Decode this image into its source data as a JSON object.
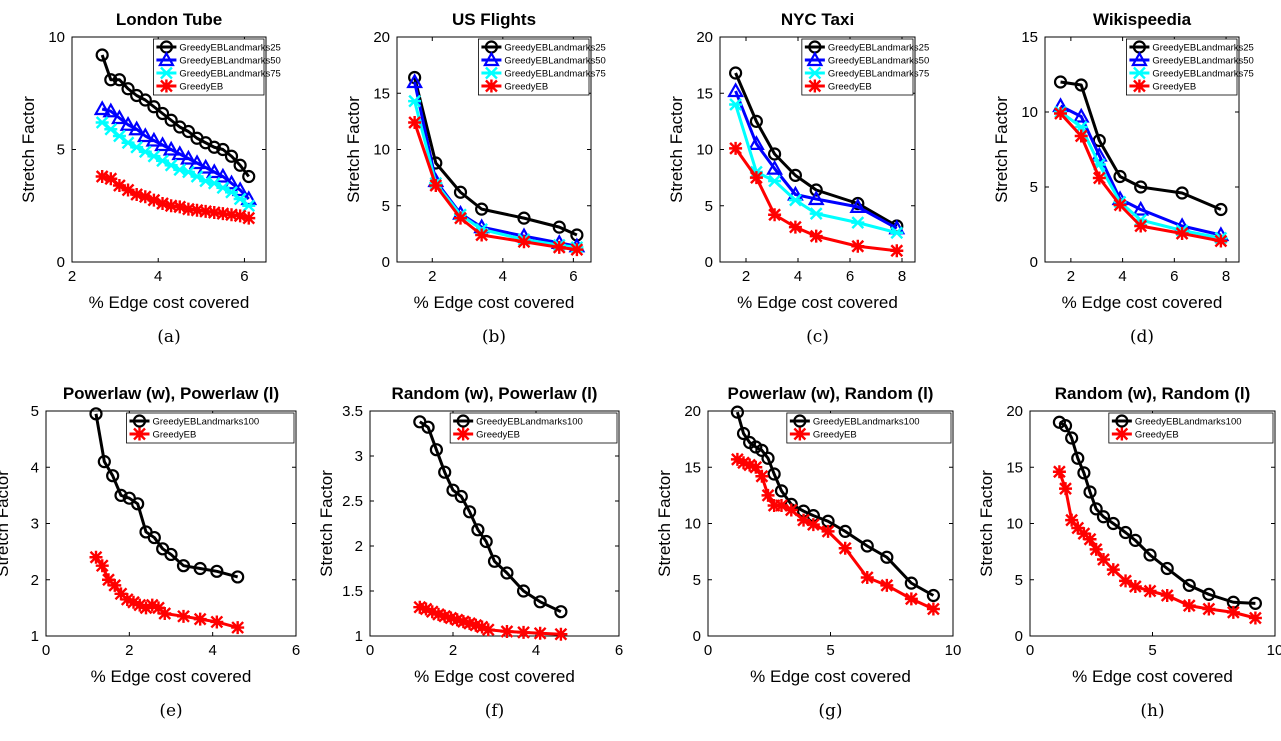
{
  "chart_data": [
    {
      "type": "line",
      "title": "London Tube",
      "caption": "(a)",
      "xlabel": "% Edge cost covered",
      "ylabel": "Stretch Factor",
      "xlim": [
        2,
        6.5
      ],
      "ylim": [
        0,
        10
      ],
      "xticks": [
        2,
        4,
        6
      ],
      "yticks": [
        0,
        5,
        10
      ],
      "legend_position": "top-right",
      "series": [
        {
          "name": "GreedyEBLandmarks25",
          "color": "#000000",
          "marker": "circle",
          "x": [
            2.7,
            2.9,
            3.1,
            3.3,
            3.5,
            3.7,
            3.9,
            4.1,
            4.3,
            4.5,
            4.7,
            4.9,
            5.1,
            5.3,
            5.5,
            5.7,
            5.9,
            6.1
          ],
          "y": [
            9.2,
            8.1,
            8.1,
            7.7,
            7.4,
            7.2,
            6.9,
            6.6,
            6.3,
            6.0,
            5.8,
            5.5,
            5.3,
            5.1,
            5.0,
            4.7,
            4.3,
            3.8
          ]
        },
        {
          "name": "GreedyEBLandmarks50",
          "color": "#0000ff",
          "marker": "triangle",
          "x": [
            2.7,
            2.9,
            3.1,
            3.3,
            3.5,
            3.7,
            3.9,
            4.1,
            4.3,
            4.5,
            4.7,
            4.9,
            5.1,
            5.3,
            5.5,
            5.7,
            5.9,
            6.1
          ],
          "y": [
            6.8,
            6.7,
            6.4,
            6.1,
            5.9,
            5.6,
            5.4,
            5.2,
            5.0,
            4.8,
            4.6,
            4.4,
            4.2,
            4.0,
            3.8,
            3.5,
            3.2,
            2.8
          ]
        },
        {
          "name": "GreedyEBLandmarks75",
          "color": "#00ffff",
          "marker": "star",
          "x": [
            2.7,
            2.9,
            3.1,
            3.3,
            3.5,
            3.7,
            3.9,
            4.1,
            4.3,
            4.5,
            4.7,
            4.9,
            5.1,
            5.3,
            5.5,
            5.7,
            5.9,
            6.1
          ],
          "y": [
            6.2,
            5.9,
            5.6,
            5.3,
            5.1,
            4.9,
            4.7,
            4.5,
            4.3,
            4.1,
            4.0,
            3.8,
            3.6,
            3.5,
            3.3,
            3.1,
            2.8,
            2.5
          ]
        },
        {
          "name": "GreedyEB",
          "color": "#ff0000",
          "marker": "asterisk",
          "x": [
            2.7,
            2.9,
            3.1,
            3.3,
            3.5,
            3.7,
            3.9,
            4.1,
            4.3,
            4.5,
            4.7,
            4.9,
            5.1,
            5.3,
            5.5,
            5.7,
            5.9,
            6.1
          ],
          "y": [
            3.8,
            3.7,
            3.4,
            3.2,
            3.0,
            2.9,
            2.75,
            2.6,
            2.5,
            2.45,
            2.35,
            2.3,
            2.25,
            2.2,
            2.15,
            2.1,
            2.05,
            1.95
          ]
        }
      ]
    },
    {
      "type": "line",
      "title": "US Flights",
      "caption": "(b)",
      "xlabel": "% Edge cost covered",
      "ylabel": "Stretch Factor",
      "xlim": [
        1,
        6.5
      ],
      "ylim": [
        0,
        20
      ],
      "xticks": [
        2,
        4,
        6
      ],
      "yticks": [
        0,
        5,
        10,
        15,
        20
      ],
      "legend_position": "top-right",
      "series": [
        {
          "name": "GreedyEBLandmarks25",
          "color": "#000000",
          "marker": "circle",
          "x": [
            1.5,
            2.1,
            2.8,
            3.4,
            4.6,
            5.6,
            6.1
          ],
          "y": [
            16.4,
            8.8,
            6.2,
            4.7,
            3.9,
            3.1,
            2.4
          ]
        },
        {
          "name": "GreedyEBLandmarks50",
          "color": "#0000ff",
          "marker": "triangle",
          "x": [
            1.5,
            2.1,
            2.8,
            3.4,
            4.6,
            5.6,
            6.1
          ],
          "y": [
            16.0,
            7.2,
            4.3,
            3.1,
            2.3,
            1.7,
            1.4
          ]
        },
        {
          "name": "GreedyEBLandmarks75",
          "color": "#00ffff",
          "marker": "star",
          "x": [
            1.5,
            2.1,
            2.8,
            3.4,
            4.6,
            5.6,
            6.1
          ],
          "y": [
            14.3,
            7.0,
            4.2,
            2.9,
            2.0,
            1.5,
            1.3
          ]
        },
        {
          "name": "GreedyEB",
          "color": "#ff0000",
          "marker": "asterisk",
          "x": [
            1.5,
            2.1,
            2.8,
            3.4,
            4.6,
            5.6,
            6.1
          ],
          "y": [
            12.4,
            6.8,
            3.9,
            2.4,
            1.8,
            1.3,
            1.1
          ]
        }
      ]
    },
    {
      "type": "line",
      "title": "NYC Taxi",
      "caption": "(c)",
      "xlabel": "% Edge cost covered",
      "ylabel": "Stretch Factor",
      "xlim": [
        1,
        8.5
      ],
      "ylim": [
        0,
        20
      ],
      "xticks": [
        2,
        4,
        6,
        8
      ],
      "yticks": [
        0,
        5,
        10,
        15,
        20
      ],
      "legend_position": "top-right",
      "series": [
        {
          "name": "GreedyEBLandmarks25",
          "color": "#000000",
          "marker": "circle",
          "x": [
            1.6,
            2.4,
            3.1,
            3.9,
            4.7,
            6.3,
            7.8
          ],
          "y": [
            16.8,
            12.5,
            9.6,
            7.7,
            6.4,
            5.2,
            3.2
          ]
        },
        {
          "name": "GreedyEBLandmarks50",
          "color": "#0000ff",
          "marker": "triangle",
          "x": [
            1.6,
            2.4,
            3.1,
            3.9,
            4.7,
            6.3,
            7.8
          ],
          "y": [
            15.2,
            10.5,
            8.3,
            6.0,
            5.6,
            4.9,
            3.0
          ]
        },
        {
          "name": "GreedyEBLandmarks75",
          "color": "#00ffff",
          "marker": "star",
          "x": [
            1.6,
            2.4,
            3.1,
            3.9,
            4.7,
            6.3,
            7.8
          ],
          "y": [
            14.0,
            8.0,
            7.2,
            5.5,
            4.3,
            3.5,
            2.6
          ]
        },
        {
          "name": "GreedyEB",
          "color": "#ff0000",
          "marker": "asterisk",
          "x": [
            1.6,
            2.4,
            3.1,
            3.9,
            4.7,
            6.3,
            7.8
          ],
          "y": [
            10.1,
            7.5,
            4.2,
            3.1,
            2.3,
            1.4,
            1.0
          ]
        }
      ]
    },
    {
      "type": "line",
      "title": "Wikispeedia",
      "caption": "(d)",
      "xlabel": "% Edge cost covered",
      "ylabel": "Stretch Factor",
      "xlim": [
        1,
        8.5
      ],
      "ylim": [
        0,
        15
      ],
      "xticks": [
        2,
        4,
        6,
        8
      ],
      "yticks": [
        0,
        5,
        10,
        15
      ],
      "legend_position": "top-right",
      "series": [
        {
          "name": "GreedyEBLandmarks25",
          "color": "#000000",
          "marker": "circle",
          "x": [
            1.6,
            2.4,
            3.1,
            3.9,
            4.7,
            6.3,
            7.8
          ],
          "y": [
            12.0,
            11.8,
            8.1,
            5.7,
            5.0,
            4.6,
            3.5
          ]
        },
        {
          "name": "GreedyEBLandmarks50",
          "color": "#0000ff",
          "marker": "triangle",
          "x": [
            1.6,
            2.4,
            3.1,
            3.9,
            4.7,
            6.3,
            7.8
          ],
          "y": [
            10.4,
            9.7,
            7.1,
            4.2,
            3.5,
            2.4,
            1.8
          ]
        },
        {
          "name": "GreedyEBLandmarks75",
          "color": "#00ffff",
          "marker": "star",
          "x": [
            1.6,
            2.4,
            3.1,
            3.9,
            4.7,
            6.3,
            7.8
          ],
          "y": [
            10.0,
            9.0,
            6.5,
            4.0,
            2.8,
            2.1,
            1.6
          ]
        },
        {
          "name": "GreedyEB",
          "color": "#ff0000",
          "marker": "asterisk",
          "x": [
            1.6,
            2.4,
            3.1,
            3.9,
            4.7,
            6.3,
            7.8
          ],
          "y": [
            9.9,
            8.4,
            5.6,
            3.8,
            2.4,
            1.9,
            1.4
          ]
        }
      ]
    },
    {
      "type": "line",
      "title": "Powerlaw (w), Powerlaw (l)",
      "caption": "(e)",
      "xlabel": "% Edge cost covered",
      "ylabel": "Stretch Factor",
      "xlim": [
        0,
        6
      ],
      "ylim": [
        1,
        5
      ],
      "xticks": [
        0,
        2,
        4,
        6
      ],
      "yticks": [
        1,
        2,
        3,
        4,
        5
      ],
      "legend_position": "top-right",
      "series": [
        {
          "name": "GreedyEBLandmarks100",
          "color": "#000000",
          "marker": "circle",
          "x": [
            1.2,
            1.4,
            1.6,
            1.8,
            2.0,
            2.2,
            2.4,
            2.6,
            2.8,
            3.0,
            3.3,
            3.7,
            4.1,
            4.6
          ],
          "y": [
            4.95,
            4.1,
            3.85,
            3.5,
            3.45,
            3.35,
            2.85,
            2.75,
            2.55,
            2.45,
            2.25,
            2.2,
            2.15,
            2.05
          ]
        },
        {
          "name": "GreedyEB",
          "color": "#ff0000",
          "marker": "asterisk",
          "x": [
            1.2,
            1.35,
            1.5,
            1.65,
            1.8,
            1.95,
            2.1,
            2.25,
            2.4,
            2.55,
            2.7,
            2.85,
            3.3,
            3.7,
            4.1,
            4.6
          ],
          "y": [
            2.4,
            2.25,
            2.0,
            1.9,
            1.75,
            1.65,
            1.6,
            1.55,
            1.5,
            1.55,
            1.5,
            1.4,
            1.35,
            1.3,
            1.25,
            1.15
          ]
        }
      ]
    },
    {
      "type": "line",
      "title": "Random (w), Powerlaw (l)",
      "caption": "(f)",
      "xlabel": "% Edge cost covered",
      "ylabel": "Stretch Factor",
      "xlim": [
        0,
        6
      ],
      "ylim": [
        1,
        3.5
      ],
      "xticks": [
        0,
        2,
        4,
        6
      ],
      "yticks": [
        1,
        1.5,
        2,
        2.5,
        3,
        3.5
      ],
      "legend_position": "top-right",
      "series": [
        {
          "name": "GreedyEBLandmarks100",
          "color": "#000000",
          "marker": "circle",
          "x": [
            1.2,
            1.4,
            1.6,
            1.8,
            2.0,
            2.2,
            2.4,
            2.6,
            2.8,
            3.0,
            3.3,
            3.7,
            4.1,
            4.6
          ],
          "y": [
            3.38,
            3.32,
            3.07,
            2.82,
            2.62,
            2.55,
            2.38,
            2.18,
            2.05,
            1.83,
            1.7,
            1.5,
            1.38,
            1.27
          ]
        },
        {
          "name": "GreedyEB",
          "color": "#ff0000",
          "marker": "asterisk",
          "x": [
            1.2,
            1.35,
            1.5,
            1.65,
            1.8,
            1.95,
            2.1,
            2.25,
            2.4,
            2.55,
            2.7,
            2.85,
            3.3,
            3.7,
            4.1,
            4.6
          ],
          "y": [
            1.32,
            1.3,
            1.27,
            1.24,
            1.22,
            1.2,
            1.18,
            1.16,
            1.14,
            1.12,
            1.1,
            1.07,
            1.05,
            1.04,
            1.03,
            1.02
          ]
        }
      ]
    },
    {
      "type": "line",
      "title": "Powerlaw (w), Random (l)",
      "caption": "(g)",
      "xlabel": "% Edge cost covered",
      "ylabel": "Stretch Factor",
      "xlim": [
        0,
        10
      ],
      "ylim": [
        0,
        20
      ],
      "xticks": [
        0,
        5,
        10
      ],
      "yticks": [
        0,
        5,
        10,
        15,
        20
      ],
      "legend_position": "top-right",
      "series": [
        {
          "name": "GreedyEBLandmarks100",
          "color": "#000000",
          "marker": "circle",
          "x": [
            1.2,
            1.45,
            1.7,
            1.95,
            2.2,
            2.45,
            2.7,
            3.0,
            3.4,
            3.9,
            4.3,
            4.9,
            5.6,
            6.5,
            7.3,
            8.3,
            9.2
          ],
          "y": [
            19.9,
            18.0,
            17.2,
            16.8,
            16.5,
            15.8,
            14.4,
            12.9,
            11.7,
            11.1,
            10.7,
            10.2,
            9.3,
            8.0,
            7.0,
            4.7,
            3.6
          ]
        },
        {
          "name": "GreedyEB",
          "color": "#ff0000",
          "marker": "asterisk",
          "x": [
            1.2,
            1.45,
            1.7,
            1.95,
            2.2,
            2.45,
            2.7,
            3.0,
            3.4,
            3.9,
            4.3,
            4.9,
            5.6,
            6.5,
            7.3,
            8.3,
            9.2
          ],
          "y": [
            15.7,
            15.4,
            15.2,
            15.0,
            14.2,
            12.5,
            11.6,
            11.6,
            11.2,
            10.3,
            9.9,
            9.3,
            7.8,
            5.2,
            4.5,
            3.3,
            2.4
          ]
        }
      ]
    },
    {
      "type": "line",
      "title": "Random (w), Random (l)",
      "caption": "(h)",
      "xlabel": "% Edge cost covered",
      "ylabel": "Stretch Factor",
      "xlim": [
        0,
        10
      ],
      "ylim": [
        0,
        20
      ],
      "xticks": [
        0,
        5,
        10
      ],
      "yticks": [
        0,
        5,
        10,
        15,
        20
      ],
      "legend_position": "top-right",
      "series": [
        {
          "name": "GreedyEBLandmarks100",
          "color": "#000000",
          "marker": "circle",
          "x": [
            1.2,
            1.45,
            1.7,
            1.95,
            2.2,
            2.45,
            2.7,
            3.0,
            3.4,
            3.9,
            4.3,
            4.9,
            5.6,
            6.5,
            7.3,
            8.3,
            9.2
          ],
          "y": [
            19.0,
            18.7,
            17.6,
            15.8,
            14.5,
            12.8,
            11.3,
            10.6,
            10.0,
            9.2,
            8.5,
            7.2,
            6.0,
            4.5,
            3.7,
            3.0,
            2.9
          ]
        },
        {
          "name": "GreedyEB",
          "color": "#ff0000",
          "marker": "asterisk",
          "x": [
            1.2,
            1.45,
            1.7,
            1.95,
            2.2,
            2.45,
            2.7,
            3.0,
            3.4,
            3.9,
            4.3,
            4.9,
            5.6,
            6.5,
            7.3,
            8.3,
            9.2
          ],
          "y": [
            14.6,
            13.1,
            10.3,
            9.6,
            9.1,
            8.6,
            7.7,
            6.8,
            5.9,
            4.9,
            4.4,
            4.0,
            3.6,
            2.7,
            2.4,
            2.1,
            1.6
          ]
        }
      ]
    }
  ]
}
